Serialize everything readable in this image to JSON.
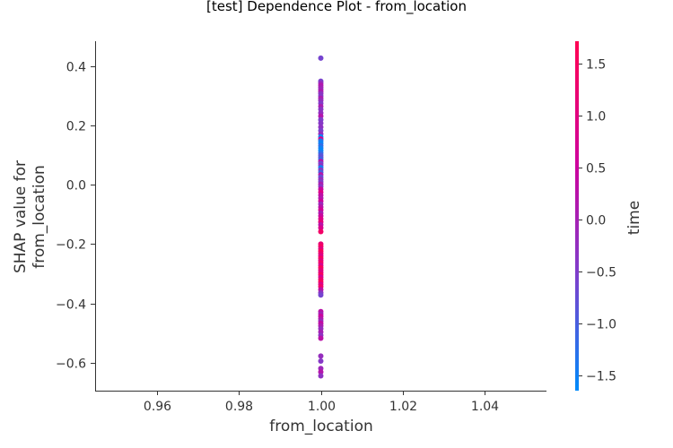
{
  "chart_data": {
    "type": "scatter",
    "title": "[test] Dependence Plot - from_location",
    "xlabel": "from_location",
    "ylabel": [
      "SHAP value for",
      "from_location"
    ],
    "xlim": [
      0.945,
      1.055
    ],
    "ylim": [
      -0.695,
      0.485
    ],
    "xticks": [
      {
        "value": 0.96,
        "label": "0.96"
      },
      {
        "value": 0.98,
        "label": "0.98"
      },
      {
        "value": 1.0,
        "label": "1.00"
      },
      {
        "value": 1.02,
        "label": "1.02"
      },
      {
        "value": 1.04,
        "label": "1.04"
      }
    ],
    "yticks": [
      {
        "value": 0.4,
        "label": "0.4"
      },
      {
        "value": 0.2,
        "label": "0.2"
      },
      {
        "value": 0.0,
        "label": "0.0"
      },
      {
        "value": -0.2,
        "label": "−0.2"
      },
      {
        "value": -0.4,
        "label": "−0.4"
      },
      {
        "value": -0.6,
        "label": "−0.6"
      }
    ],
    "grid": false,
    "colorbar": {
      "label": "time",
      "range": [
        -1.65,
        1.72
      ],
      "ticks": [
        {
          "value": 1.5,
          "label": "1.5"
        },
        {
          "value": 1.0,
          "label": "1.0"
        },
        {
          "value": 0.5,
          "label": "0.5"
        },
        {
          "value": 0.0,
          "label": "0.0"
        },
        {
          "value": -0.5,
          "label": "−0.5"
        },
        {
          "value": -1.0,
          "label": "−1.0"
        },
        {
          "value": -1.5,
          "label": "−1.5"
        }
      ],
      "colors": [
        "#008AFA",
        "#7D3FCC",
        "#D0009A",
        "#FF0052"
      ]
    },
    "points": [
      {
        "x": 1.0,
        "y": 0.428,
        "c": -0.6
      },
      {
        "x": 1.0,
        "y": 0.35,
        "c": -0.55
      },
      {
        "x": 1.0,
        "y": 0.343,
        "c": -0.2
      },
      {
        "x": 1.0,
        "y": 0.336,
        "c": 0.2
      },
      {
        "x": 1.0,
        "y": 0.329,
        "c": 0.0
      },
      {
        "x": 1.0,
        "y": 0.322,
        "c": -0.1
      },
      {
        "x": 1.0,
        "y": 0.315,
        "c": 0.15
      },
      {
        "x": 1.0,
        "y": 0.308,
        "c": -0.3
      },
      {
        "x": 1.0,
        "y": 0.3,
        "c": -0.4
      },
      {
        "x": 1.0,
        "y": 0.292,
        "c": 0.1
      },
      {
        "x": 1.0,
        "y": 0.285,
        "c": -0.2
      },
      {
        "x": 1.0,
        "y": 0.275,
        "c": -0.45
      },
      {
        "x": 1.0,
        "y": 0.265,
        "c": 0.05
      },
      {
        "x": 1.0,
        "y": 0.255,
        "c": -0.35
      },
      {
        "x": 1.0,
        "y": 0.243,
        "c": -0.25
      },
      {
        "x": 1.0,
        "y": 0.232,
        "c": 0.2
      },
      {
        "x": 1.0,
        "y": 0.22,
        "c": -0.5
      },
      {
        "x": 1.0,
        "y": 0.208,
        "c": -0.4
      },
      {
        "x": 1.0,
        "y": 0.195,
        "c": -0.3
      },
      {
        "x": 1.0,
        "y": 0.183,
        "c": -0.55
      },
      {
        "x": 1.0,
        "y": 0.172,
        "c": -0.2
      },
      {
        "x": 1.0,
        "y": 0.162,
        "c": -1.6
      },
      {
        "x": 1.0,
        "y": 0.155,
        "c": 0.8
      },
      {
        "x": 1.0,
        "y": 0.148,
        "c": -1.4
      },
      {
        "x": 1.0,
        "y": 0.14,
        "c": -1.55
      },
      {
        "x": 1.0,
        "y": 0.132,
        "c": -1.2
      },
      {
        "x": 1.0,
        "y": 0.124,
        "c": -1.5
      },
      {
        "x": 1.0,
        "y": 0.116,
        "c": -1.6
      },
      {
        "x": 1.0,
        "y": 0.108,
        "c": -1.3
      },
      {
        "x": 1.0,
        "y": 0.1,
        "c": -0.9
      },
      {
        "x": 1.0,
        "y": 0.093,
        "c": -0.8
      },
      {
        "x": 1.0,
        "y": 0.086,
        "c": -1.1
      },
      {
        "x": 1.0,
        "y": 0.079,
        "c": 0.3
      },
      {
        "x": 1.0,
        "y": 0.072,
        "c": -0.6
      },
      {
        "x": 1.0,
        "y": 0.065,
        "c": -0.3
      },
      {
        "x": 1.0,
        "y": 0.058,
        "c": -1.45
      },
      {
        "x": 1.0,
        "y": 0.05,
        "c": -0.4
      },
      {
        "x": 1.0,
        "y": 0.042,
        "c": -1.0
      },
      {
        "x": 1.0,
        "y": 0.034,
        "c": 0.2
      },
      {
        "x": 1.0,
        "y": 0.026,
        "c": -0.7
      },
      {
        "x": 1.0,
        "y": 0.018,
        "c": -0.2
      },
      {
        "x": 1.0,
        "y": 0.01,
        "c": -0.5
      },
      {
        "x": 1.0,
        "y": 0.002,
        "c": 0.1
      },
      {
        "x": 1.0,
        "y": -0.006,
        "c": -0.3
      },
      {
        "x": 1.0,
        "y": -0.015,
        "c": 0.5
      },
      {
        "x": 1.0,
        "y": -0.025,
        "c": 0.9
      },
      {
        "x": 1.0,
        "y": -0.035,
        "c": 0.4
      },
      {
        "x": 1.0,
        "y": -0.045,
        "c": 0.2
      },
      {
        "x": 1.0,
        "y": -0.055,
        "c": 0.6
      },
      {
        "x": 1.0,
        "y": -0.065,
        "c": -0.1
      },
      {
        "x": 1.0,
        "y": -0.075,
        "c": 0.3
      },
      {
        "x": 1.0,
        "y": -0.085,
        "c": 0.7
      },
      {
        "x": 1.0,
        "y": -0.095,
        "c": 0.1
      },
      {
        "x": 1.0,
        "y": -0.105,
        "c": 0.5
      },
      {
        "x": 1.0,
        "y": -0.115,
        "c": 0.9
      },
      {
        "x": 1.0,
        "y": -0.125,
        "c": 1.1
      },
      {
        "x": 1.0,
        "y": -0.135,
        "c": 0.3
      },
      {
        "x": 1.0,
        "y": -0.145,
        "c": 0.8
      },
      {
        "x": 1.0,
        "y": -0.158,
        "c": 1.4
      },
      {
        "x": 1.0,
        "y": -0.2,
        "c": 1.2
      },
      {
        "x": 1.0,
        "y": -0.208,
        "c": 1.5
      },
      {
        "x": 1.0,
        "y": -0.216,
        "c": 1.0
      },
      {
        "x": 1.0,
        "y": -0.224,
        "c": 1.6
      },
      {
        "x": 1.0,
        "y": -0.232,
        "c": 1.3
      },
      {
        "x": 1.0,
        "y": -0.24,
        "c": 0.9
      },
      {
        "x": 1.0,
        "y": -0.248,
        "c": 1.5
      },
      {
        "x": 1.0,
        "y": -0.256,
        "c": 1.1
      },
      {
        "x": 1.0,
        "y": -0.264,
        "c": 1.4
      },
      {
        "x": 1.0,
        "y": -0.272,
        "c": 0.8
      },
      {
        "x": 1.0,
        "y": -0.28,
        "c": 1.6
      },
      {
        "x": 1.0,
        "y": -0.288,
        "c": 1.2
      },
      {
        "x": 1.0,
        "y": -0.296,
        "c": 1.0
      },
      {
        "x": 1.0,
        "y": -0.304,
        "c": 1.5
      },
      {
        "x": 1.0,
        "y": -0.312,
        "c": 0.7
      },
      {
        "x": 1.0,
        "y": -0.32,
        "c": 1.3
      },
      {
        "x": 1.0,
        "y": -0.328,
        "c": 1.6
      },
      {
        "x": 1.0,
        "y": -0.336,
        "c": 0.9
      },
      {
        "x": 1.0,
        "y": -0.344,
        "c": 1.4
      },
      {
        "x": 1.0,
        "y": -0.354,
        "c": 0.4
      },
      {
        "x": 1.0,
        "y": -0.364,
        "c": -0.3
      },
      {
        "x": 1.0,
        "y": -0.372,
        "c": -0.6
      },
      {
        "x": 1.0,
        "y": -0.428,
        "c": 0.3
      },
      {
        "x": 1.0,
        "y": -0.436,
        "c": 0.0
      },
      {
        "x": 1.0,
        "y": -0.444,
        "c": 0.5
      },
      {
        "x": 1.0,
        "y": -0.452,
        "c": 0.2
      },
      {
        "x": 1.0,
        "y": -0.46,
        "c": -0.1
      },
      {
        "x": 1.0,
        "y": -0.468,
        "c": 0.4
      },
      {
        "x": 1.0,
        "y": -0.476,
        "c": 0.1
      },
      {
        "x": 1.0,
        "y": -0.486,
        "c": -0.2
      },
      {
        "x": 1.0,
        "y": -0.497,
        "c": 0.0
      },
      {
        "x": 1.0,
        "y": -0.508,
        "c": -0.3
      },
      {
        "x": 1.0,
        "y": -0.518,
        "c": 0.3
      },
      {
        "x": 1.0,
        "y": -0.578,
        "c": -0.2
      },
      {
        "x": 1.0,
        "y": -0.595,
        "c": -0.4
      },
      {
        "x": 1.0,
        "y": -0.62,
        "c": -0.1
      },
      {
        "x": 1.0,
        "y": -0.632,
        "c": 0.2
      },
      {
        "x": 1.0,
        "y": -0.645,
        "c": -0.3
      }
    ]
  }
}
